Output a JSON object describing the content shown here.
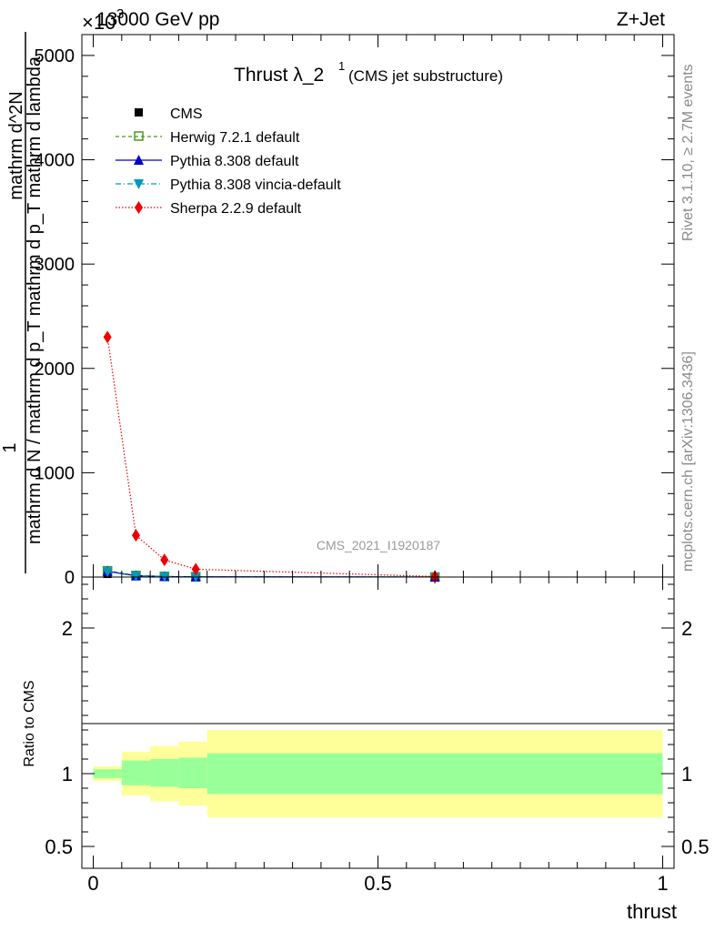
{
  "header": {
    "left": "13000 GeV pp",
    "right": "Z+Jet",
    "exponent": "×10",
    "exponent_power": "3"
  },
  "side_labels": {
    "top": "Rivet 3.1.10, ≥ 2.7M events",
    "bottom": "mcplots.cern.ch [arXiv:1306.3436]"
  },
  "colors": {
    "cms": "#000000",
    "herwig": "#4a9a1c",
    "pythia": "#0000cc",
    "vincia": "#0099bb",
    "sherpa": "#ee0000",
    "band_inner": "#99ff99",
    "band_outer": "#ffff99"
  },
  "chart_data": [
    {
      "type": "line",
      "title": "Thrust λ_2",
      "title_sup": "1",
      "subtitle": "(CMS jet substructure)",
      "watermark": "CMS_2021_I1920187",
      "ylabel_numerator": "1",
      "ylabel_denominator": "mathrm d N / mathrm d p_T mathrm d p_T mathrm d lambda",
      "ylabel_top": "mathrm d^2N",
      "ylim": [
        0,
        5200
      ],
      "xlim": [
        -0.02,
        1.02
      ],
      "yticks": [
        0,
        1000,
        2000,
        3000,
        4000,
        5000
      ],
      "ytick_labels": [
        "0",
        "1000",
        "2000",
        "3000",
        "4000",
        "5000"
      ],
      "legend_position": "top-left",
      "series": [
        {
          "name": "CMS",
          "x": [
            0.025,
            0.075,
            0.125,
            0.18,
            0.6
          ],
          "y": [
            30,
            8,
            4,
            2,
            0.5
          ]
        },
        {
          "name": "Herwig 7.2.1 default",
          "x": [
            0.025,
            0.075,
            0.125,
            0.18,
            0.6
          ],
          "y": [
            60,
            15,
            6,
            3,
            0.5
          ]
        },
        {
          "name": "Pythia 8.308 default",
          "x": [
            0.025,
            0.075,
            0.125,
            0.18,
            0.6
          ],
          "y": [
            55,
            12,
            5,
            2.5,
            0.5
          ]
        },
        {
          "name": "Pythia 8.308 vincia-default",
          "x": [
            0.025,
            0.075,
            0.125,
            0.18,
            0.6
          ],
          "y": [
            50,
            10,
            4.5,
            2,
            0.5
          ]
        },
        {
          "name": "Sherpa 2.2.9 default",
          "x": [
            0.025,
            0.075,
            0.125,
            0.18,
            0.6
          ],
          "y": [
            2300,
            400,
            165,
            75,
            5
          ]
        }
      ]
    },
    {
      "type": "area",
      "ylabel": "Ratio to CMS",
      "xlabel": "thrust",
      "ylim": [
        0.35,
        2.35
      ],
      "xlim": [
        -0.02,
        1.02
      ],
      "yticks": [
        0.5,
        1,
        2
      ],
      "ytick_labels": [
        "0.5",
        "1",
        "2"
      ],
      "xticks": [
        0,
        0.5,
        1
      ],
      "xtick_labels": [
        "0",
        "0.5",
        "1"
      ],
      "bins": [
        {
          "x0": 0.0,
          "x1": 0.05,
          "inner": [
            0.97,
            1.03
          ],
          "outer": [
            0.95,
            1.05
          ]
        },
        {
          "x0": 0.05,
          "x1": 0.1,
          "inner": [
            0.92,
            1.09
          ],
          "outer": [
            0.85,
            1.15
          ]
        },
        {
          "x0": 0.1,
          "x1": 0.15,
          "inner": [
            0.91,
            1.1
          ],
          "outer": [
            0.81,
            1.19
          ]
        },
        {
          "x0": 0.15,
          "x1": 0.2,
          "inner": [
            0.9,
            1.11
          ],
          "outer": [
            0.78,
            1.22
          ]
        },
        {
          "x0": 0.2,
          "x1": 1.0,
          "inner": [
            0.86,
            1.14
          ],
          "outer": [
            0.7,
            1.3
          ]
        }
      ]
    }
  ]
}
